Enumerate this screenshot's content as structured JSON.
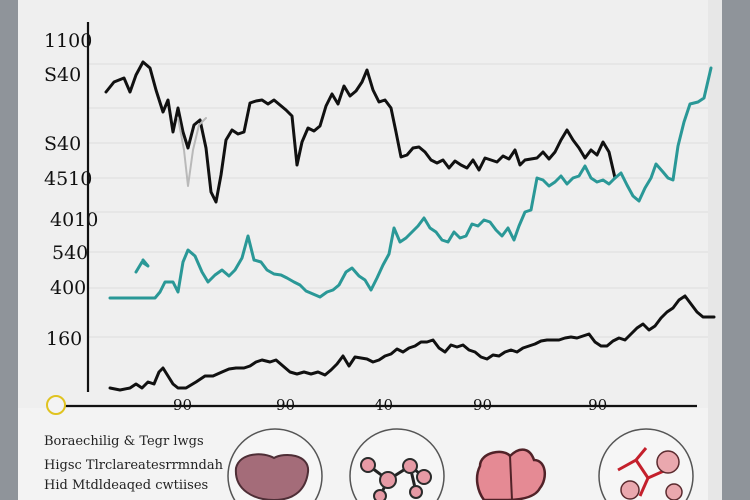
{
  "chart_data": {
    "type": "line",
    "yticks": [
      "1100",
      "S40",
      "S40",
      "4510",
      "4010",
      "540",
      "400",
      "160"
    ],
    "xticks": [
      "90",
      "90",
      "40",
      "90",
      "-90"
    ],
    "series": [
      {
        "color": "#111111",
        "points": [
          [
            88,
            92
          ],
          [
            96,
            82
          ],
          [
            106,
            78
          ],
          [
            112,
            92
          ],
          [
            118,
            75
          ],
          [
            125,
            62
          ],
          [
            132,
            68
          ],
          [
            138,
            90
          ],
          [
            145,
            112
          ],
          [
            150,
            100
          ],
          [
            155,
            132
          ],
          [
            160,
            108
          ],
          [
            165,
            132
          ],
          [
            170,
            148
          ],
          [
            176,
            125
          ],
          [
            182,
            120
          ],
          [
            188,
            148
          ],
          [
            193,
            192
          ],
          [
            198,
            202
          ],
          [
            203,
            175
          ],
          [
            208,
            140
          ],
          [
            214,
            130
          ],
          [
            220,
            134
          ],
          [
            226,
            132
          ],
          [
            232,
            103
          ],
          [
            238,
            101
          ],
          [
            244,
            100
          ],
          [
            250,
            104
          ],
          [
            256,
            100
          ],
          [
            262,
            105
          ],
          [
            268,
            110
          ],
          [
            274,
            116
          ],
          [
            279,
            165
          ],
          [
            284,
            142
          ],
          [
            290,
            128
          ],
          [
            296,
            131
          ],
          [
            302,
            126
          ],
          [
            308,
            106
          ],
          [
            314,
            94
          ],
          [
            320,
            104
          ],
          [
            326,
            86
          ],
          [
            332,
            96
          ],
          [
            338,
            91
          ],
          [
            344,
            82
          ],
          [
            349,
            70
          ],
          [
            355,
            90
          ],
          [
            361,
            102
          ],
          [
            367,
            100
          ],
          [
            373,
            108
          ],
          [
            378,
            132
          ],
          [
            383,
            157
          ],
          [
            389,
            155
          ],
          [
            395,
            148
          ],
          [
            401,
            147
          ],
          [
            407,
            152
          ],
          [
            413,
            160
          ],
          [
            419,
            163
          ],
          [
            425,
            160
          ],
          [
            431,
            168
          ],
          [
            437,
            161
          ],
          [
            443,
            165
          ],
          [
            449,
            168
          ],
          [
            455,
            160
          ],
          [
            461,
            170
          ],
          [
            467,
            158
          ],
          [
            473,
            160
          ],
          [
            479,
            162
          ],
          [
            485,
            156
          ],
          [
            491,
            159
          ],
          [
            497,
            150
          ],
          [
            502,
            165
          ],
          [
            507,
            160
          ],
          [
            513,
            159
          ],
          [
            519,
            158
          ],
          [
            525,
            152
          ],
          [
            531,
            159
          ],
          [
            537,
            152
          ],
          [
            543,
            140
          ],
          [
            549,
            130
          ],
          [
            555,
            140
          ],
          [
            561,
            148
          ],
          [
            567,
            158
          ],
          [
            573,
            150
          ],
          [
            579,
            155
          ],
          [
            585,
            142
          ],
          [
            591,
            152
          ],
          [
            597,
            178
          ]
        ]
      },
      {
        "color": "#b9b9b9",
        "points": [
          [
            160,
            118
          ],
          [
            166,
            150
          ],
          [
            170,
            186
          ],
          [
            175,
            150
          ],
          [
            181,
            125
          ],
          [
            188,
            118
          ]
        ]
      },
      {
        "color": "#2a9897",
        "points": [
          [
            92,
            298
          ],
          [
            102,
            298
          ],
          [
            112,
            298
          ],
          [
            122,
            298
          ],
          [
            137,
            298
          ],
          [
            142,
            292
          ],
          [
            147,
            282
          ],
          [
            155,
            282
          ],
          [
            160,
            292
          ],
          [
            165,
            262
          ],
          [
            170,
            250
          ],
          [
            177,
            256
          ],
          [
            184,
            272
          ],
          [
            190,
            282
          ],
          [
            197,
            275
          ],
          [
            204,
            270
          ],
          [
            211,
            276
          ],
          [
            217,
            270
          ],
          [
            224,
            258
          ],
          [
            230,
            236
          ],
          [
            236,
            260
          ],
          [
            243,
            262
          ],
          [
            249,
            270
          ],
          [
            256,
            274
          ],
          [
            263,
            275
          ],
          [
            269,
            278
          ],
          [
            276,
            282
          ],
          [
            282,
            285
          ],
          [
            288,
            291
          ],
          [
            295,
            294
          ],
          [
            302,
            297
          ],
          [
            309,
            292
          ],
          [
            315,
            290
          ],
          [
            321,
            285
          ],
          [
            328,
            272
          ],
          [
            334,
            268
          ],
          [
            341,
            276
          ],
          [
            347,
            280
          ],
          [
            353,
            290
          ],
          [
            359,
            278
          ],
          [
            365,
            265
          ],
          [
            371,
            254
          ],
          [
            376,
            228
          ],
          [
            382,
            242
          ],
          [
            388,
            238
          ],
          [
            394,
            232
          ],
          [
            400,
            226
          ],
          [
            406,
            218
          ],
          [
            412,
            228
          ],
          [
            418,
            232
          ],
          [
            424,
            240
          ],
          [
            430,
            242
          ],
          [
            436,
            232
          ],
          [
            442,
            238
          ],
          [
            448,
            236
          ],
          [
            454,
            224
          ],
          [
            460,
            226
          ],
          [
            466,
            220
          ],
          [
            472,
            222
          ],
          [
            478,
            230
          ],
          [
            484,
            236
          ],
          [
            490,
            228
          ],
          [
            496,
            240
          ],
          [
            501,
            226
          ],
          [
            507,
            212
          ],
          [
            513,
            210
          ],
          [
            519,
            178
          ],
          [
            525,
            180
          ],
          [
            531,
            186
          ],
          [
            537,
            182
          ],
          [
            543,
            176
          ],
          [
            549,
            184
          ],
          [
            555,
            178
          ],
          [
            561,
            176
          ],
          [
            567,
            166
          ],
          [
            573,
            178
          ],
          [
            579,
            182
          ],
          [
            585,
            180
          ],
          [
            591,
            184
          ],
          [
            597,
            178
          ],
          [
            603,
            173
          ],
          [
            609,
            185
          ],
          [
            615,
            196
          ],
          [
            621,
            201
          ],
          [
            627,
            188
          ],
          [
            633,
            178
          ],
          [
            638,
            164
          ],
          [
            645,
            172
          ],
          [
            650,
            178
          ],
          [
            655,
            180
          ],
          [
            660,
            146
          ],
          [
            666,
            122
          ],
          [
            672,
            104
          ],
          [
            680,
            102
          ],
          [
            686,
            98
          ],
          [
            693,
            68
          ]
        ]
      },
      {
        "color": "#2a9897",
        "points": [
          [
            118,
            272
          ],
          [
            124,
            262
          ],
          [
            130,
            266
          ],
          [
            125,
            260
          ]
        ]
      },
      {
        "color": "#111111",
        "points": [
          [
            92,
            388
          ],
          [
            102,
            390
          ],
          [
            112,
            388
          ],
          [
            118,
            384
          ],
          [
            124,
            388
          ],
          [
            130,
            382
          ],
          [
            136,
            384
          ],
          [
            141,
            372
          ],
          [
            145,
            368
          ],
          [
            150,
            376
          ],
          [
            155,
            384
          ],
          [
            160,
            388
          ],
          [
            168,
            388
          ],
          [
            178,
            382
          ],
          [
            187,
            376
          ],
          [
            195,
            376
          ],
          [
            204,
            372
          ],
          [
            211,
            369
          ],
          [
            218,
            368
          ],
          [
            226,
            368
          ],
          [
            232,
            366
          ],
          [
            238,
            362
          ],
          [
            244,
            360
          ],
          [
            252,
            362
          ],
          [
            258,
            360
          ],
          [
            265,
            366
          ],
          [
            272,
            372
          ],
          [
            279,
            374
          ],
          [
            286,
            372
          ],
          [
            293,
            374
          ],
          [
            300,
            372
          ],
          [
            307,
            375
          ],
          [
            313,
            370
          ],
          [
            319,
            364
          ],
          [
            325,
            356
          ],
          [
            331,
            366
          ],
          [
            337,
            357
          ],
          [
            343,
            358
          ],
          [
            349,
            359
          ],
          [
            355,
            362
          ],
          [
            361,
            360
          ],
          [
            367,
            356
          ],
          [
            373,
            354
          ],
          [
            379,
            349
          ],
          [
            385,
            352
          ],
          [
            391,
            348
          ],
          [
            397,
            346
          ],
          [
            403,
            342
          ],
          [
            409,
            342
          ],
          [
            415,
            340
          ],
          [
            421,
            348
          ],
          [
            427,
            352
          ],
          [
            433,
            345
          ],
          [
            439,
            347
          ],
          [
            445,
            345
          ],
          [
            451,
            350
          ],
          [
            457,
            352
          ],
          [
            463,
            357
          ],
          [
            469,
            359
          ],
          [
            475,
            355
          ],
          [
            481,
            356
          ],
          [
            487,
            352
          ],
          [
            493,
            350
          ],
          [
            499,
            352
          ],
          [
            505,
            348
          ],
          [
            511,
            346
          ],
          [
            517,
            344
          ],
          [
            523,
            341
          ],
          [
            529,
            340
          ],
          [
            535,
            340
          ],
          [
            541,
            340
          ],
          [
            547,
            338
          ],
          [
            553,
            337
          ],
          [
            559,
            338
          ],
          [
            565,
            336
          ],
          [
            571,
            334
          ],
          [
            577,
            342
          ],
          [
            583,
            346
          ],
          [
            589,
            346
          ],
          [
            595,
            341
          ],
          [
            601,
            338
          ],
          [
            607,
            340
          ],
          [
            613,
            334
          ],
          [
            619,
            328
          ],
          [
            625,
            324
          ],
          [
            631,
            330
          ],
          [
            637,
            326
          ],
          [
            643,
            318
          ],
          [
            649,
            312
          ],
          [
            655,
            308
          ],
          [
            661,
            300
          ],
          [
            667,
            296
          ],
          [
            673,
            304
          ],
          [
            679,
            312
          ],
          [
            685,
            317
          ],
          [
            696,
            317
          ]
        ]
      }
    ]
  },
  "captions": {
    "line1": "Boraechilig  &  Tegr lwgs",
    "line2": "Higsc  Tlrclareatesrrmndah",
    "line3": "Hid  Mtdldeaqed  cwtiises"
  }
}
